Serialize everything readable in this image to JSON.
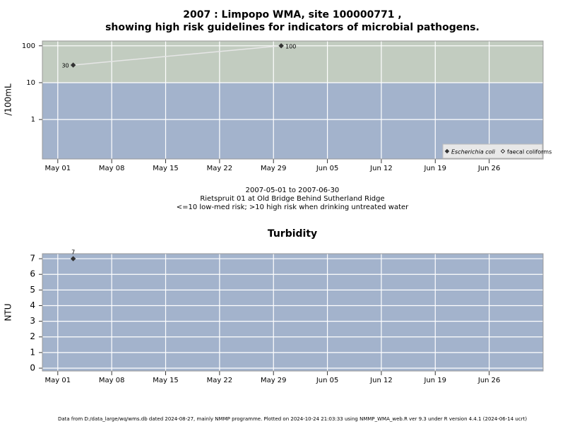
{
  "chart_data": [
    {
      "type": "line",
      "log_y": true,
      "title": "2007 : Limpopo WMA, site 100000771 ,",
      "subtitle": "showing high risk guidelines for indicators of microbial pathogens.",
      "y_label": "/100mL",
      "annotations": [
        "2007-05-01 to 2007-06-30",
        "Rietspruit 01 at Old Bridge Behind Sutherland Ridge",
        "<=10 low-med risk; >10 high risk when drinking untreated water"
      ],
      "xlim": [
        "2007-04-29",
        "2007-07-03"
      ],
      "xticks": [
        {
          "value": "2007-05-01",
          "label": "May 01"
        },
        {
          "value": "2007-05-08",
          "label": "May 08"
        },
        {
          "value": "2007-05-15",
          "label": "May 15"
        },
        {
          "value": "2007-05-22",
          "label": "May 22"
        },
        {
          "value": "2007-05-29",
          "label": "May 29"
        },
        {
          "value": "2007-06-05",
          "label": "Jun 05"
        },
        {
          "value": "2007-06-12",
          "label": "Jun 12"
        },
        {
          "value": "2007-06-19",
          "label": "Jun 19"
        },
        {
          "value": "2007-06-26",
          "label": "Jun 26"
        }
      ],
      "ylim": [
        0.085,
        135
      ],
      "yticks": [
        1,
        10,
        100
      ],
      "bands": {
        "threshold": 10,
        "above": "#c2ccc0",
        "below": "#a3b3cc"
      },
      "grid": true,
      "legend": "bottom-right",
      "line_color": "#e6e6e6",
      "series": [
        {
          "name": "Escherichia coli",
          "italic": true,
          "marker": "filled",
          "color": "#333333",
          "x": [
            "2007-05-03",
            "2007-05-30"
          ],
          "values": [
            30,
            100
          ],
          "label_positions": [
            "left",
            "right"
          ]
        },
        {
          "name": "faecal coliforms",
          "italic": false,
          "marker": "open",
          "color": "#333333",
          "x": [],
          "values": [],
          "label_positions": []
        }
      ]
    },
    {
      "type": "scatter",
      "log_y": false,
      "title": "Turbidity",
      "y_label": "NTU",
      "xlim": [
        "2007-04-29",
        "2007-07-03"
      ],
      "xticks": [
        {
          "value": "2007-05-01",
          "label": "May 01"
        },
        {
          "value": "2007-05-08",
          "label": "May 08"
        },
        {
          "value": "2007-05-15",
          "label": "May 15"
        },
        {
          "value": "2007-05-22",
          "label": "May 22"
        },
        {
          "value": "2007-05-29",
          "label": "May 29"
        },
        {
          "value": "2007-06-05",
          "label": "Jun 05"
        },
        {
          "value": "2007-06-12",
          "label": "Jun 12"
        },
        {
          "value": "2007-06-19",
          "label": "Jun 19"
        },
        {
          "value": "2007-06-26",
          "label": "Jun 26"
        }
      ],
      "ylim": [
        -0.18,
        7.32
      ],
      "yticks": [
        0,
        1,
        2,
        3,
        4,
        5,
        6,
        7
      ],
      "background": "#a3b3cc",
      "grid": true,
      "series": [
        {
          "marker": "filled",
          "color": "#333333",
          "x": [
            "2007-05-03"
          ],
          "values": [
            7
          ],
          "label_positions": [
            "above"
          ]
        }
      ]
    }
  ],
  "footer": "Data from D:/data_large/wq/wms.db dated 2024-08-27, mainly NMMP programme. Plotted on 2024-10-24 21:03:33 using NMMP_WMA_web.R ver 9.3 under R version 4.4.1 (2024-06-14 ucrt)"
}
